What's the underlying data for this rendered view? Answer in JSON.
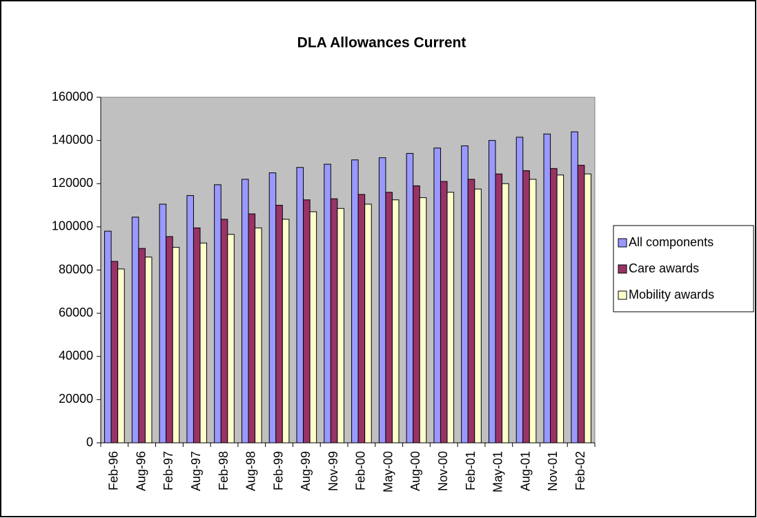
{
  "chart_data": {
    "type": "bar",
    "title": "DLA Allowances Current",
    "categories": [
      "Feb-96",
      "Aug-96",
      "Feb-97",
      "Aug-97",
      "Feb-98",
      "Aug-98",
      "Feb-99",
      "Aug-99",
      "Nov-99",
      "Feb-00",
      "May-00",
      "Aug-00",
      "Nov-00",
      "Feb-01",
      "May-01",
      "Aug-01",
      "Nov-01",
      "Feb-02"
    ],
    "series": [
      {
        "name": "All components",
        "color": "#9999ff",
        "values": [
          98000,
          104500,
          110500,
          114500,
          119500,
          122000,
          125000,
          127500,
          129000,
          131000,
          132000,
          134000,
          136500,
          137500,
          140000,
          141500,
          143000,
          144000
        ]
      },
      {
        "name": "Care awards",
        "color": "#993366",
        "values": [
          84000,
          90000,
          95500,
          99500,
          103500,
          106000,
          110000,
          112500,
          113000,
          115000,
          116000,
          119000,
          121000,
          122000,
          124500,
          126000,
          127000,
          128500
        ]
      },
      {
        "name": "Mobility awards",
        "color": "#ffffcc",
        "values": [
          80500,
          86000,
          90500,
          92500,
          96500,
          99500,
          103500,
          107000,
          108500,
          110500,
          112500,
          113500,
          116000,
          117500,
          120000,
          122000,
          124000,
          124500
        ]
      }
    ],
    "ylim": [
      0,
      160000
    ],
    "yticks": [
      0,
      20000,
      40000,
      60000,
      80000,
      100000,
      120000,
      140000,
      160000
    ],
    "grid": false,
    "legend": "right",
    "plot_background": "#c0c0c0"
  }
}
